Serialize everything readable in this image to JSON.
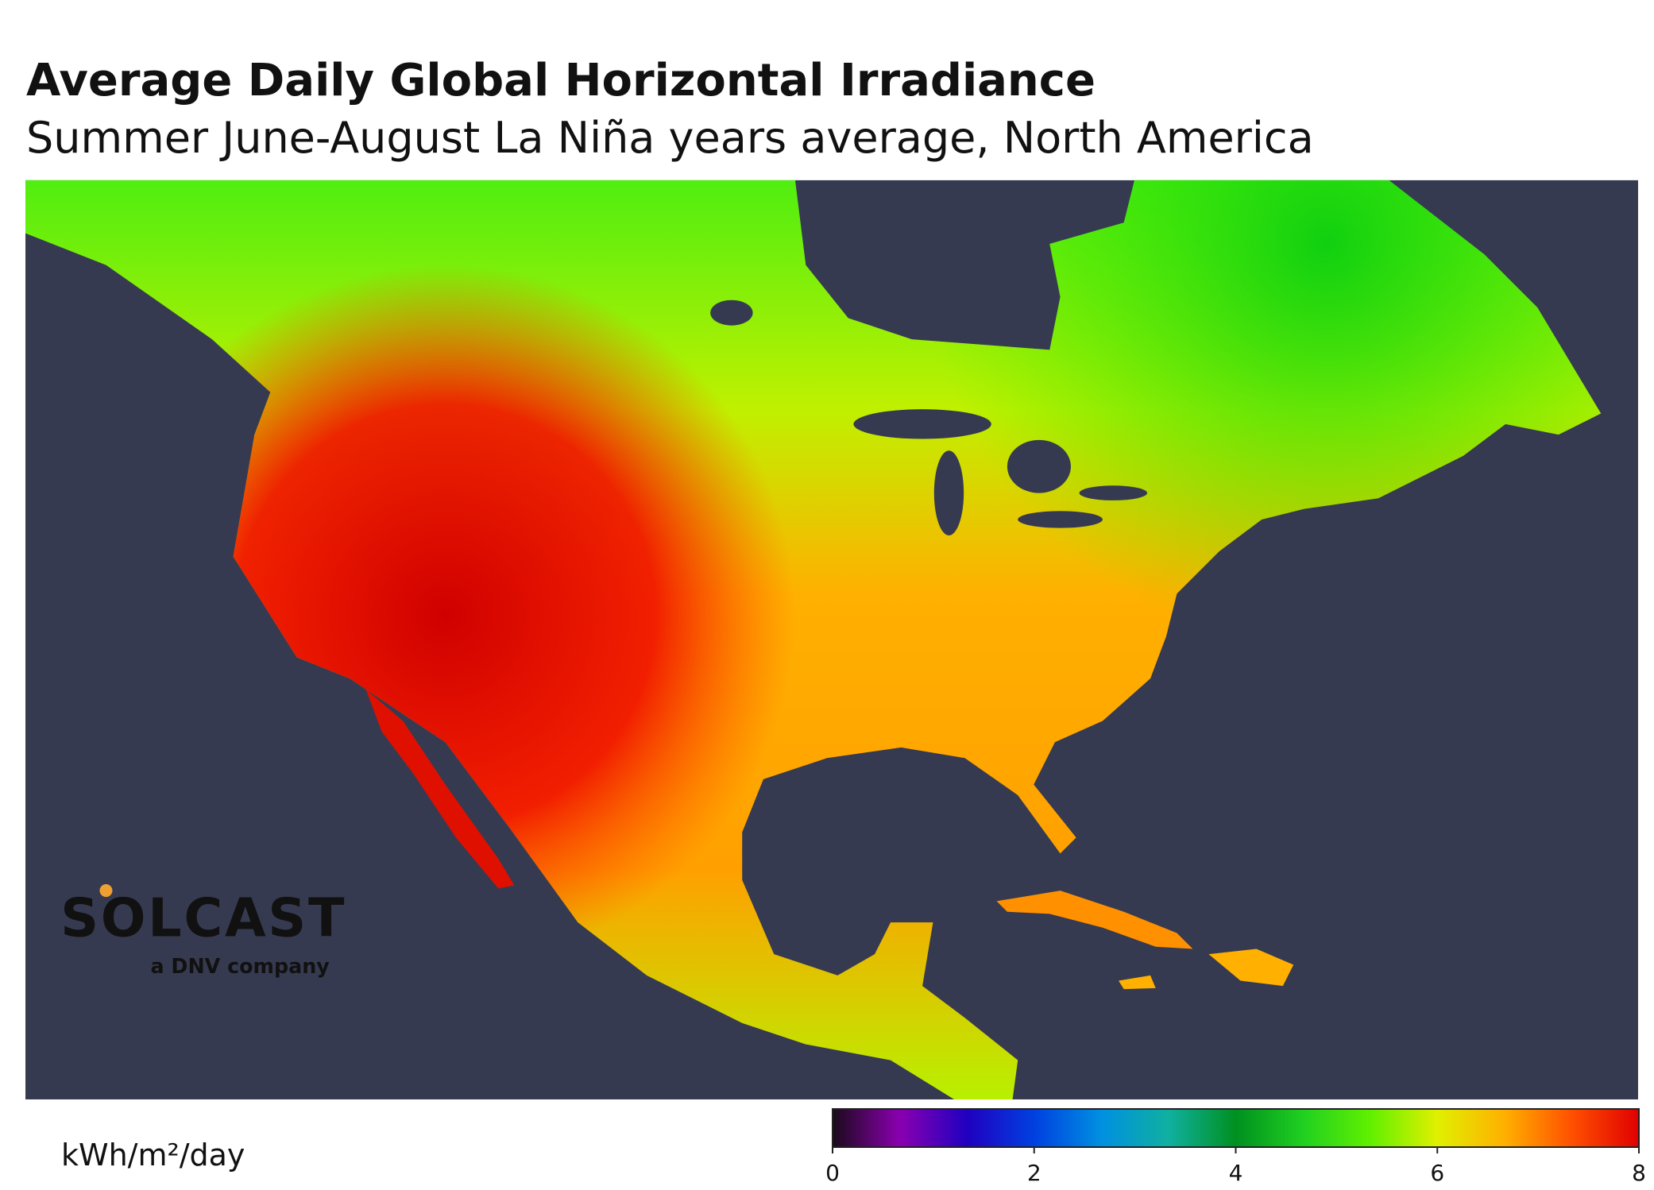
{
  "title": "Average Daily Global Horizontal Irradiance",
  "subtitle": "Summer June-August La Niña years average, North America",
  "logo": {
    "name": "SOLCAST",
    "tagline": "a DNV company"
  },
  "colorbar": {
    "unit": "kWh/m²/day",
    "lim": [
      0,
      8
    ],
    "ticks": [
      0,
      2,
      4,
      6,
      8
    ],
    "colors": [
      "#1a0a1a",
      "#8a00b0",
      "#2000c0",
      "#0040e0",
      "#0090e0",
      "#10b0a0",
      "#009020",
      "#20d020",
      "#60f000",
      "#e0f000",
      "#ffb000",
      "#ff5000",
      "#e00000"
    ]
  }
}
